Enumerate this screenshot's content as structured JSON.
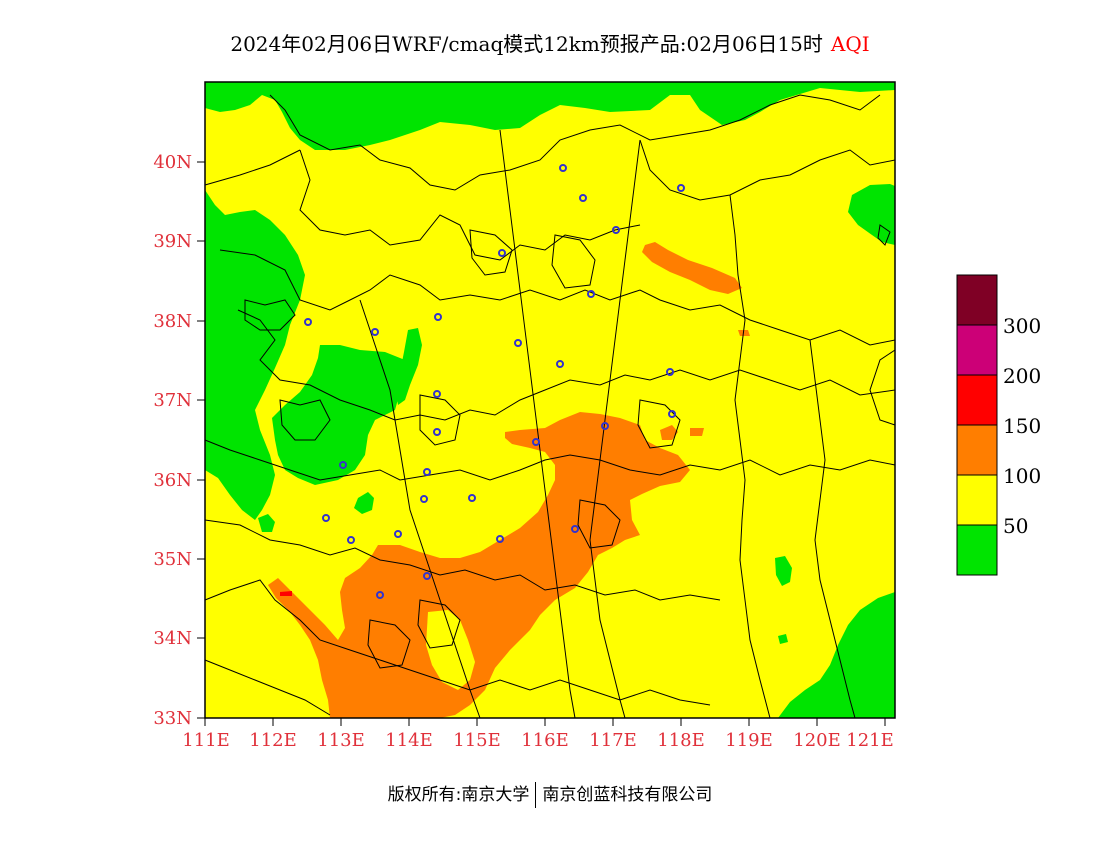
{
  "header": {
    "title": "2024年02月06日WRF/cmaq模式12km预报产品:02月06日15时",
    "aqi_label": "AQI",
    "aqi_color": "#ff0000"
  },
  "axes": {
    "x_ticks": [
      "111E",
      "112E",
      "113E",
      "114E",
      "115E",
      "116E",
      "117E",
      "118E",
      "119E",
      "120E",
      "121E"
    ],
    "y_ticks": [
      "40N",
      "39N",
      "38N",
      "37N",
      "36N",
      "35N",
      "34N",
      "33N"
    ],
    "tick_color": "#e0303a"
  },
  "legend": {
    "labels": [
      "300",
      "200",
      "150",
      "100",
      "50"
    ],
    "colors": [
      "#7f0025",
      "#cc0077",
      "#ff0000",
      "#ff7e00",
      "#ffff00",
      "#00e400"
    ]
  },
  "footer": {
    "copyright": "版权所有:南京大学",
    "company": "南京创蓝科技有限公司"
  },
  "colors": {
    "good": "#00e400",
    "moderate": "#ffff00",
    "usg": "#ff7e00",
    "unhealthy": "#ff0000",
    "city_marker": "#3333cc"
  }
}
